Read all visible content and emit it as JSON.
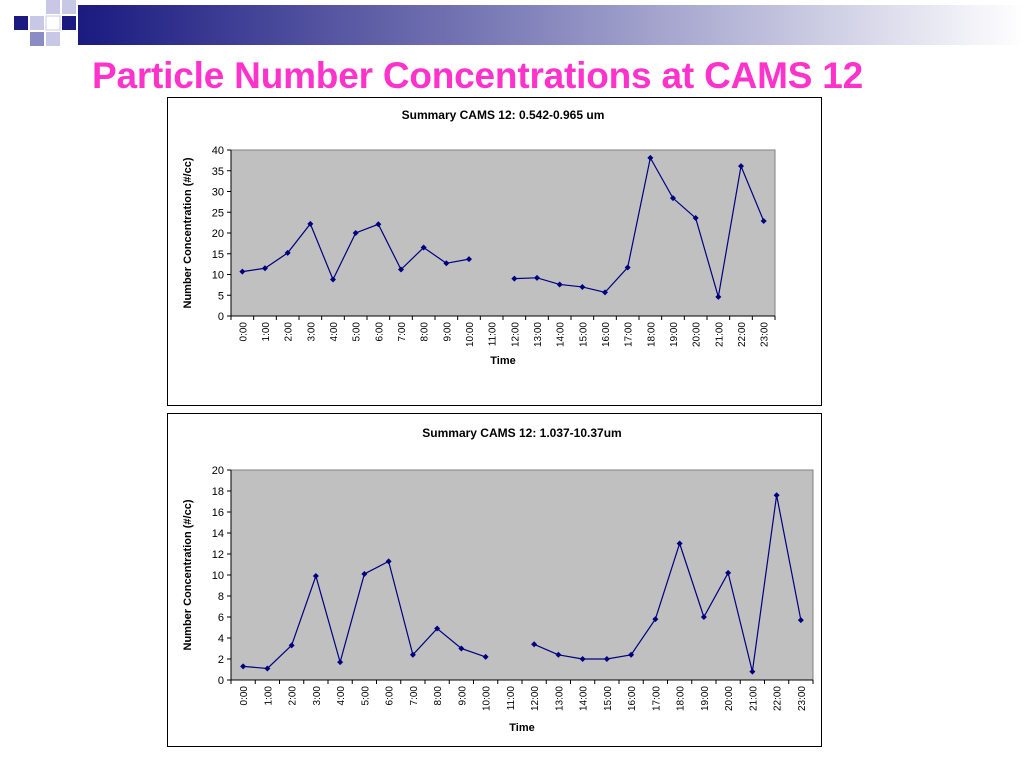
{
  "slide": {
    "title": "Particle Number Concentrations at CAMS 12",
    "colors": {
      "title": "#ff33cc",
      "header_band": "#1a1a80",
      "plot_area": "#c0c0c0",
      "series_line": "#000080"
    }
  },
  "chart_data": [
    {
      "type": "line",
      "title": "Summary CAMS 12: 0.542-0.965 um",
      "xlabel": "Time",
      "ylabel": "Number Concentration (#/cc)",
      "ylim": [
        0,
        40
      ],
      "yticks": [
        0,
        5,
        10,
        15,
        20,
        25,
        30,
        35,
        40
      ],
      "grid": false,
      "legend": "none",
      "categories": [
        "0:00",
        "1:00",
        "2:00",
        "3:00",
        "4:00",
        "5:00",
        "6:00",
        "7:00",
        "8:00",
        "9:00",
        "10:00",
        "11:00",
        "12:00",
        "13:00",
        "14:00",
        "15:00",
        "16:00",
        "17:00",
        "18:00",
        "19:00",
        "20:00",
        "21:00",
        "22:00",
        "23:00"
      ],
      "series": [
        {
          "values": [
            10.7,
            11.5,
            15.2,
            22.2,
            8.8,
            20.0,
            22.1,
            11.2,
            16.5,
            12.7,
            13.7,
            null,
            9.0,
            9.2,
            7.6,
            7.0,
            5.7,
            11.7,
            38.1,
            28.4,
            23.6,
            4.6,
            36.1,
            22.9
          ]
        }
      ]
    },
    {
      "type": "line",
      "title": "Summary CAMS 12: 1.037-10.37um",
      "xlabel": "Time",
      "ylabel": "Number Concentration (#/cc)",
      "ylim": [
        0,
        20
      ],
      "yticks": [
        0,
        2,
        4,
        6,
        8,
        10,
        12,
        14,
        16,
        18,
        20
      ],
      "grid": false,
      "legend": "none",
      "categories": [
        "0:00",
        "1:00",
        "2:00",
        "3:00",
        "4:00",
        "5:00",
        "6:00",
        "7:00",
        "8:00",
        "9:00",
        "10:00",
        "11:00",
        "12:00",
        "13:00",
        "14:00",
        "15:00",
        "16:00",
        "17:00",
        "18:00",
        "19:00",
        "20:00",
        "21:00",
        "22:00",
        "23:00"
      ],
      "series": [
        {
          "values": [
            1.3,
            1.1,
            3.3,
            9.9,
            1.7,
            10.1,
            11.3,
            2.4,
            4.9,
            3.0,
            2.2,
            null,
            3.4,
            2.4,
            2.0,
            2.0,
            2.4,
            5.8,
            13.0,
            6.0,
            10.2,
            0.8,
            17.6,
            5.7
          ]
        }
      ]
    }
  ]
}
